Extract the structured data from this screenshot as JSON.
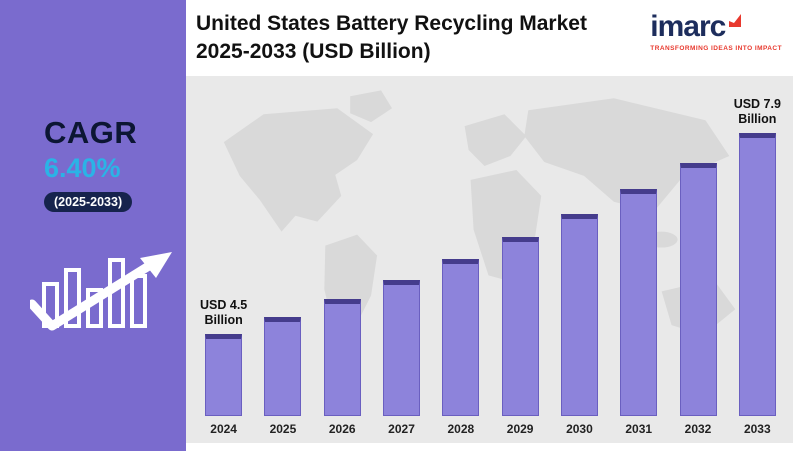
{
  "sidebar": {
    "cagr_label": "CAGR",
    "cagr_value": "6.40%",
    "cagr_period": "(2025-2033)",
    "accent_color": "#2bb3e6",
    "bg_color": "#7a6bce"
  },
  "header": {
    "title_line1": "United States Battery Recycling Market",
    "title_line2": "2025-2033 (USD Billion)"
  },
  "logo": {
    "name": "imarc",
    "tagline": "TRANSFORMING IDEAS INTO IMPACT",
    "text_color": "#1d2d5c",
    "accent_color": "#e8392e"
  },
  "chart_data": {
    "type": "bar",
    "title": "United States Battery Recycling Market 2025-2033 (USD Billion)",
    "unit": "USD Billion",
    "categories": [
      "2024",
      "2025",
      "2026",
      "2027",
      "2028",
      "2029",
      "2030",
      "2031",
      "2032",
      "2033"
    ],
    "values": [
      4.5,
      4.79,
      5.09,
      5.42,
      5.77,
      6.14,
      6.53,
      6.95,
      7.39,
      7.9
    ],
    "annotations": [
      {
        "index": 0,
        "text": "USD 4.5 Billion"
      },
      {
        "index": 9,
        "text": "USD 7.9 Billion"
      }
    ],
    "cagr": "6.40%",
    "bar_color": "#8d83db",
    "bar_top_color": "#453c8c",
    "background_color": "#e9e9e9",
    "xlabel": "",
    "ylabel": "",
    "legend": false,
    "grid": false
  }
}
